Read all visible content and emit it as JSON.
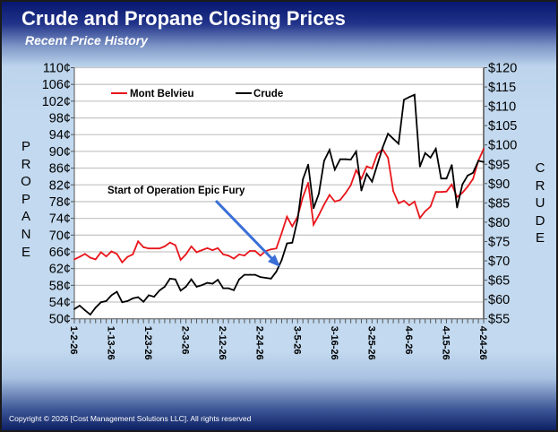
{
  "header": {
    "title": "Crude and Propane Closing Prices",
    "subtitle": "Recent Price History"
  },
  "footer": {
    "copyright": "Copyright © 2026 [Cost Management Solutions LLC].  All rights reserved"
  },
  "colors": {
    "mont_belvieu": "#e8151b",
    "crude": "#000000",
    "annotation_arrow": "#3a6fd8",
    "plot_bg": "#ffffff",
    "grid": "#c8c8c8"
  },
  "chart_data": {
    "type": "line",
    "title": "Crude and Propane Closing Prices",
    "subtitle": "Recent Price History",
    "left_axis": {
      "label": "PROPANE",
      "range": [
        50,
        110
      ],
      "step": 4,
      "unit": "¢",
      "ticks": [
        "50¢",
        "54¢",
        "58¢",
        "62¢",
        "66¢",
        "70¢",
        "74¢",
        "78¢",
        "82¢",
        "86¢",
        "90¢",
        "94¢",
        "98¢",
        "102¢",
        "106¢",
        "110¢"
      ]
    },
    "right_axis": {
      "label": "CRUDE",
      "range": [
        55,
        120
      ],
      "step": 5,
      "unit": "$",
      "ticks": [
        "$55",
        "$60",
        "$65",
        "$70",
        "$75",
        "$80",
        "$85",
        "$90",
        "$95",
        "$100",
        "$105",
        "$110",
        "$115",
        "$120"
      ]
    },
    "x_tick_labels": [
      "1-2-26",
      "1-13-26",
      "1-23-26",
      "2-3-26",
      "2-12-26",
      "2-24-26",
      "3-5-26",
      "3-16-26",
      "3-25-26",
      "4-6-26",
      "4-15-26",
      "4-24-26"
    ],
    "grid": true,
    "legend": {
      "placement": "top-left",
      "entries": [
        "Mont Belvieu",
        "Crude"
      ]
    },
    "annotation": "Start of Operation Epic Fury",
    "series": [
      {
        "name": "Mont Belvieu",
        "axis": "left",
        "values": [
          64.2,
          64.8,
          65.5,
          64.6,
          64.2,
          65.9,
          64.9,
          66.1,
          65.5,
          63.5,
          64.8,
          65.4,
          68.5,
          67.1,
          66.8,
          66.8,
          66.8,
          67.3,
          68.2,
          67.6,
          64.1,
          65.4,
          67.3,
          65.9,
          66.4,
          66.9,
          66.4,
          66.9,
          65.4,
          65.1,
          64.4,
          65.4,
          65.1,
          66.2,
          66.2,
          65.1,
          66.2,
          66.6,
          66.8,
          70.5,
          74.4,
          72.1,
          74.4,
          79.1,
          82.5,
          72.5,
          74.8,
          77.3,
          79.6,
          78.0,
          78.4,
          80.0,
          81.9,
          85.5,
          83.5,
          86.4,
          85.9,
          89.4,
          90.5,
          88.5,
          80.5,
          77.6,
          78.2,
          77.1,
          78.0,
          74.1,
          75.7,
          76.8,
          80.3,
          80.3,
          80.4,
          82.1,
          79.1,
          80.1,
          81.6,
          83.4,
          87.8,
          90.6
        ]
      },
      {
        "name": "Crude",
        "axis": "right",
        "values": [
          57.5,
          58.4,
          57.2,
          56.1,
          57.9,
          59.3,
          59.6,
          61.1,
          62.0,
          59.3,
          59.6,
          60.3,
          60.6,
          59.4,
          61.1,
          60.7,
          62.3,
          63.3,
          65.4,
          65.2,
          62.3,
          63.3,
          65.2,
          63.3,
          63.7,
          64.3,
          64.1,
          65.1,
          62.9,
          62.9,
          62.4,
          65.2,
          66.4,
          66.4,
          66.4,
          65.8,
          65.6,
          65.4,
          67.2,
          70.2,
          74.5,
          74.7,
          80.7,
          91.1,
          94.9,
          83.6,
          87.4,
          95.9,
          98.7,
          93.6,
          96.3,
          96.3,
          96.2,
          98.3,
          88.2,
          92.5,
          90.5,
          94.9,
          99.3,
          102.9,
          101.6,
          100.3,
          111.7,
          112.4,
          113.0,
          94.4,
          97.9,
          96.7,
          99.0,
          91.3,
          91.3,
          94.8,
          83.8,
          89.8,
          92.1,
          92.8,
          95.9,
          95.6
        ]
      }
    ]
  }
}
